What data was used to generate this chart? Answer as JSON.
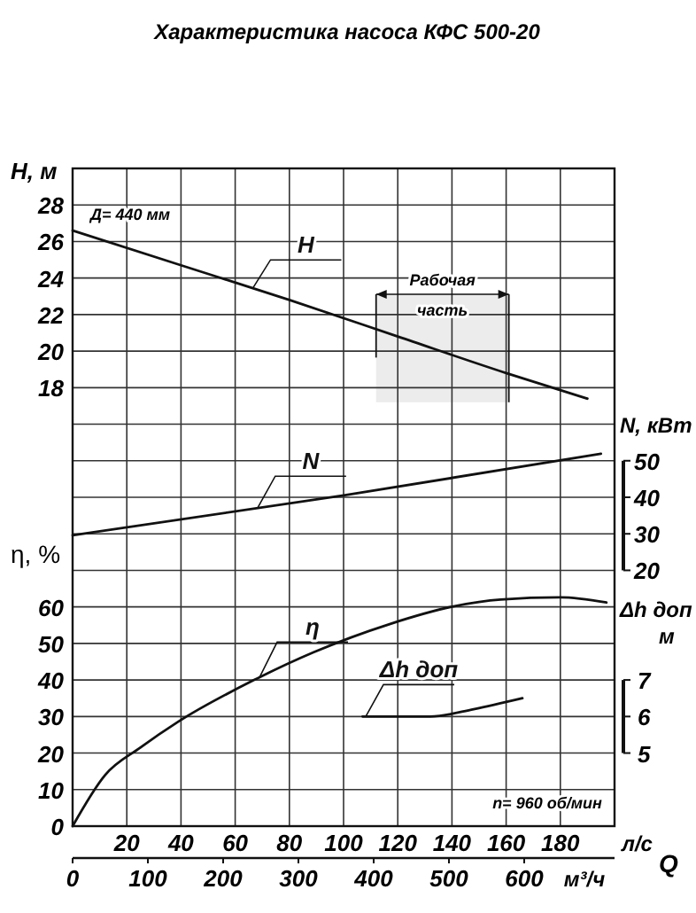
{
  "chart_data": [
    {
      "type": "line",
      "title": "Характеристика насоса КФС 500-20",
      "xlabel": "л/с",
      "x2label": "м³/ч",
      "ylabel": "η, %",
      "y2label": "N, кВт",
      "y3label": "H, м",
      "xlim": [
        0,
        200
      ],
      "xticks": [
        {
          "value": 0,
          "label": null
        },
        20,
        40,
        60,
        80,
        100,
        120,
        140,
        160,
        180,
        {
          "value": 200,
          "label": null
        }
      ],
      "x2lim": [
        0,
        720
      ],
      "x2ticks": [
        0,
        100,
        200,
        300,
        400,
        500,
        600
      ],
      "ylim": [
        0,
        180
      ],
      "yticks": [
        0,
        10,
        20,
        30,
        40,
        50,
        60,
        {
          "value": 70,
          "label": null
        },
        {
          "value": 80,
          "label": null
        },
        {
          "value": 90,
          "label": null
        },
        {
          "value": 100,
          "label": null
        },
        {
          "value": 110,
          "label": null
        },
        {
          "value": 120,
          "label": null
        },
        {
          "value": 130,
          "label": null
        },
        {
          "value": 140,
          "label": null
        },
        {
          "value": 150,
          "label": null
        },
        {
          "value": 160,
          "label": null
        },
        {
          "value": 170,
          "label": null
        },
        {
          "value": 180,
          "label": null
        }
      ],
      "y2lim": [
        -50,
        130
      ],
      "y2ticks": [
        20,
        30,
        40,
        50
      ],
      "y3lim": [
        -6,
        30
      ],
      "y3ticks": [
        18,
        20,
        22,
        24,
        26,
        28
      ],
      "grid": true,
      "series": [
        {
          "name": "H",
          "color": "#111111",
          "axis": "y3",
          "x": [
            0,
            40,
            80,
            120,
            160,
            190
          ],
          "values": [
            26.6,
            24.7,
            22.8,
            20.8,
            18.8,
            17.4
          ]
        },
        {
          "name": "N",
          "color": "#111111",
          "axis": "y2",
          "x": [
            0,
            100,
            195
          ],
          "values": [
            29.6,
            40.5,
            51.9
          ]
        },
        {
          "name": "η",
          "color": "#111111",
          "x": [
            0,
            12,
            25,
            39,
            67,
            89,
            117,
            141,
            158,
            180,
            197
          ],
          "values": [
            0,
            14,
            21.5,
            28.6,
            40,
            47.6,
            55.3,
            60.2,
            62,
            62.6,
            61.2
          ]
        }
      ],
      "bands": [
        {
          "axis": "x",
          "from": 112,
          "to": 161,
          "label": "Рабочая часть",
          "color": "#ececec"
        }
      ],
      "annotations": [
        "Д= 440 мм",
        "Q",
        "n= 960 об/мин"
      ]
    },
    {
      "type": "line",
      "ylabel": "Δh доп м",
      "xlim": [
        0,
        200
      ],
      "ylim": [
        3,
        21
      ],
      "yticks": [
        5,
        6,
        7
      ],
      "tick_labels": "y",
      "series": [
        {
          "name": "Δh доп",
          "color": "#111111",
          "x": [
            107,
            117,
            132,
            148,
            166
          ],
          "values": [
            6.0,
            6.0,
            6.0,
            6.2,
            6.5
          ]
        }
      ]
    }
  ]
}
